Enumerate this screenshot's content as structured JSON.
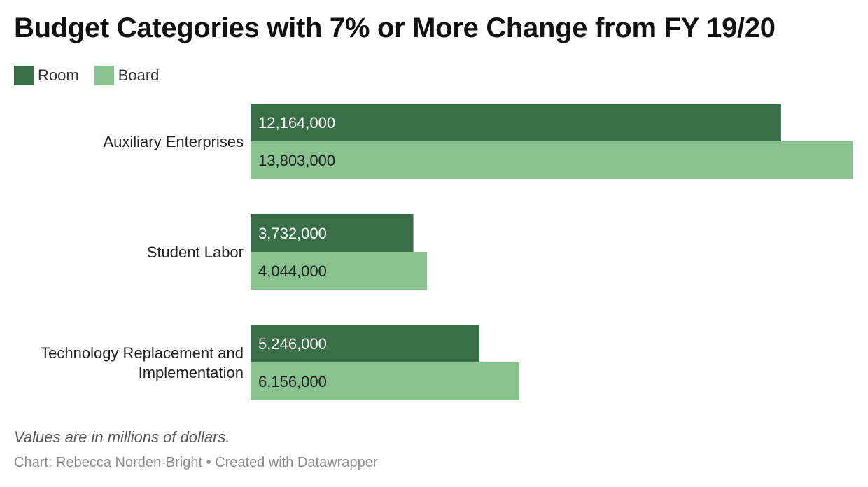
{
  "title": "Budget Categories with 7% or More Change from FY 19/20",
  "notes": "Values are in millions of dollars.",
  "footer": {
    "credit": "Chart: Rebecca Norden-Bright",
    "separator": "•",
    "tool": "Created with Datawrapper"
  },
  "colors": {
    "room": "#386f46",
    "board": "#88c28f"
  },
  "chart_data": {
    "type": "bar",
    "orientation": "horizontal",
    "title": "Budget Categories with 7% or More Change from FY 19/20",
    "categories": [
      [
        "Auxiliary Enterprises"
      ],
      [
        "Student Labor"
      ],
      [
        "Technology Replacement and",
        "Implementation"
      ]
    ],
    "series": [
      {
        "name": "Room",
        "color": "#386f46",
        "values": [
          12164000,
          3732000,
          5246000
        ],
        "labels": [
          "12,164,000",
          "3,732,000",
          "5,246,000"
        ]
      },
      {
        "name": "Board",
        "color": "#88c28f",
        "values": [
          13803000,
          4044000,
          6156000
        ],
        "labels": [
          "13,803,000",
          "4,044,000",
          "6,156,000"
        ]
      }
    ],
    "xlim": [
      0,
      13803000
    ],
    "grid": false,
    "legend_position": "top-left"
  }
}
